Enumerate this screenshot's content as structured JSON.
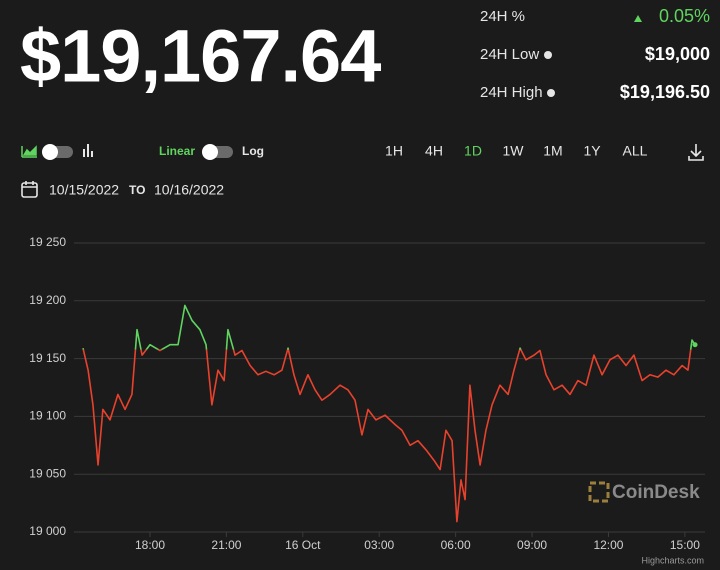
{
  "header": {
    "price": "$19,167.64",
    "stats": [
      {
        "label": "24H %",
        "value": "0.05%"
      },
      {
        "label": "24H Low",
        "value": "$19,000"
      },
      {
        "label": "24H High",
        "value": "$19,196.50"
      }
    ]
  },
  "controls": {
    "scale_options": [
      "Linear",
      "Log"
    ],
    "active_scale": "Linear",
    "ranges": [
      "1H",
      "4H",
      "1D",
      "1W",
      "1M",
      "1Y",
      "ALL"
    ],
    "active_range": "1D"
  },
  "date_range": {
    "from": "10/15/2022",
    "to_label": "TO",
    "to": "10/16/2022"
  },
  "watermark": "CoinDesk",
  "credit": "Highcharts.com",
  "chart_data": {
    "type": "line",
    "x": [
      15.37,
      15.57,
      15.76,
      15.96,
      16.15,
      16.43,
      16.74,
      17.02,
      17.29,
      17.49,
      17.69,
      18,
      18.39,
      18.79,
      19.1,
      19.37,
      19.65,
      19.96,
      20.2,
      20.43,
      20.67,
      20.91,
      21.06,
      21.34,
      21.61,
      21.93,
      22.24,
      22.55,
      22.87,
      23.18,
      23.42,
      23.65,
      23.89,
      24.2,
      24.48,
      24.75,
      25.07,
      25.46,
      25.77,
      26.05,
      26.32,
      26.56,
      26.87,
      27.23,
      27.62,
      27.89,
      28.21,
      28.52,
      28.84,
      29.15,
      29.39,
      29.62,
      29.86,
      30.05,
      30.21,
      30.37,
      30.56,
      30.76,
      30.96,
      31.19,
      31.43,
      31.74,
      32.06,
      32.29,
      32.53,
      32.76,
      33.08,
      33.31,
      33.55,
      33.86,
      34.18,
      34.49,
      34.8,
      35.12,
      35.43,
      35.75,
      36.06,
      36.37,
      36.69,
      37.0,
      37.32,
      37.63,
      37.94,
      38.26,
      38.57,
      38.89,
      39.12,
      39.28,
      39.4
    ],
    "values": [
      19159,
      19140,
      19110,
      19058,
      19106,
      19097,
      19119,
      19106,
      19119,
      19175,
      19153,
      19162,
      19157,
      19162,
      19162,
      19196,
      19183,
      19175,
      19162,
      19110,
      19140,
      19131,
      19175,
      19153,
      19157,
      19144,
      19136,
      19139,
      19136,
      19140,
      19159,
      19136,
      19119,
      19136,
      19123,
      19114,
      19119,
      19127,
      19123,
      19114,
      19084,
      19106,
      19097,
      19101,
      19093,
      19088,
      19075,
      19079,
      19071,
      19062,
      19054,
      19088,
      19079,
      19009,
      19045,
      19028,
      19127,
      19088,
      19058,
      19088,
      19110,
      19127,
      19119,
      19140,
      19159,
      19149,
      19153,
      19157,
      19136,
      19123,
      19127,
      19119,
      19131,
      19127,
      19153,
      19136,
      19149,
      19153,
      19144,
      19153,
      19131,
      19136,
      19134,
      19140,
      19136,
      19144,
      19140,
      19166,
      19162
    ],
    "threshold": 19158,
    "color_above": "#5fd45f",
    "color_below": "#e8412c",
    "xlim": [
      15.2,
      39.6
    ],
    "xticks": [
      {
        "value": 18,
        "label": "18:00"
      },
      {
        "value": 21,
        "label": "21:00"
      },
      {
        "value": 24,
        "label": "16 Oct"
      },
      {
        "value": 27,
        "label": "03:00"
      },
      {
        "value": 30,
        "label": "06:00"
      },
      {
        "value": 33,
        "label": "09:00"
      },
      {
        "value": 36,
        "label": "12:00"
      },
      {
        "value": 39,
        "label": "15:00"
      }
    ],
    "ylim": [
      19000,
      19250
    ],
    "yticks": [
      {
        "value": 19000,
        "label": "19 000"
      },
      {
        "value": 19050,
        "label": "19 050"
      },
      {
        "value": 19100,
        "label": "19 100"
      },
      {
        "value": 19150,
        "label": "19 150"
      },
      {
        "value": 19200,
        "label": "19 200"
      },
      {
        "value": 19250,
        "label": "19 250"
      }
    ],
    "grid": true
  }
}
